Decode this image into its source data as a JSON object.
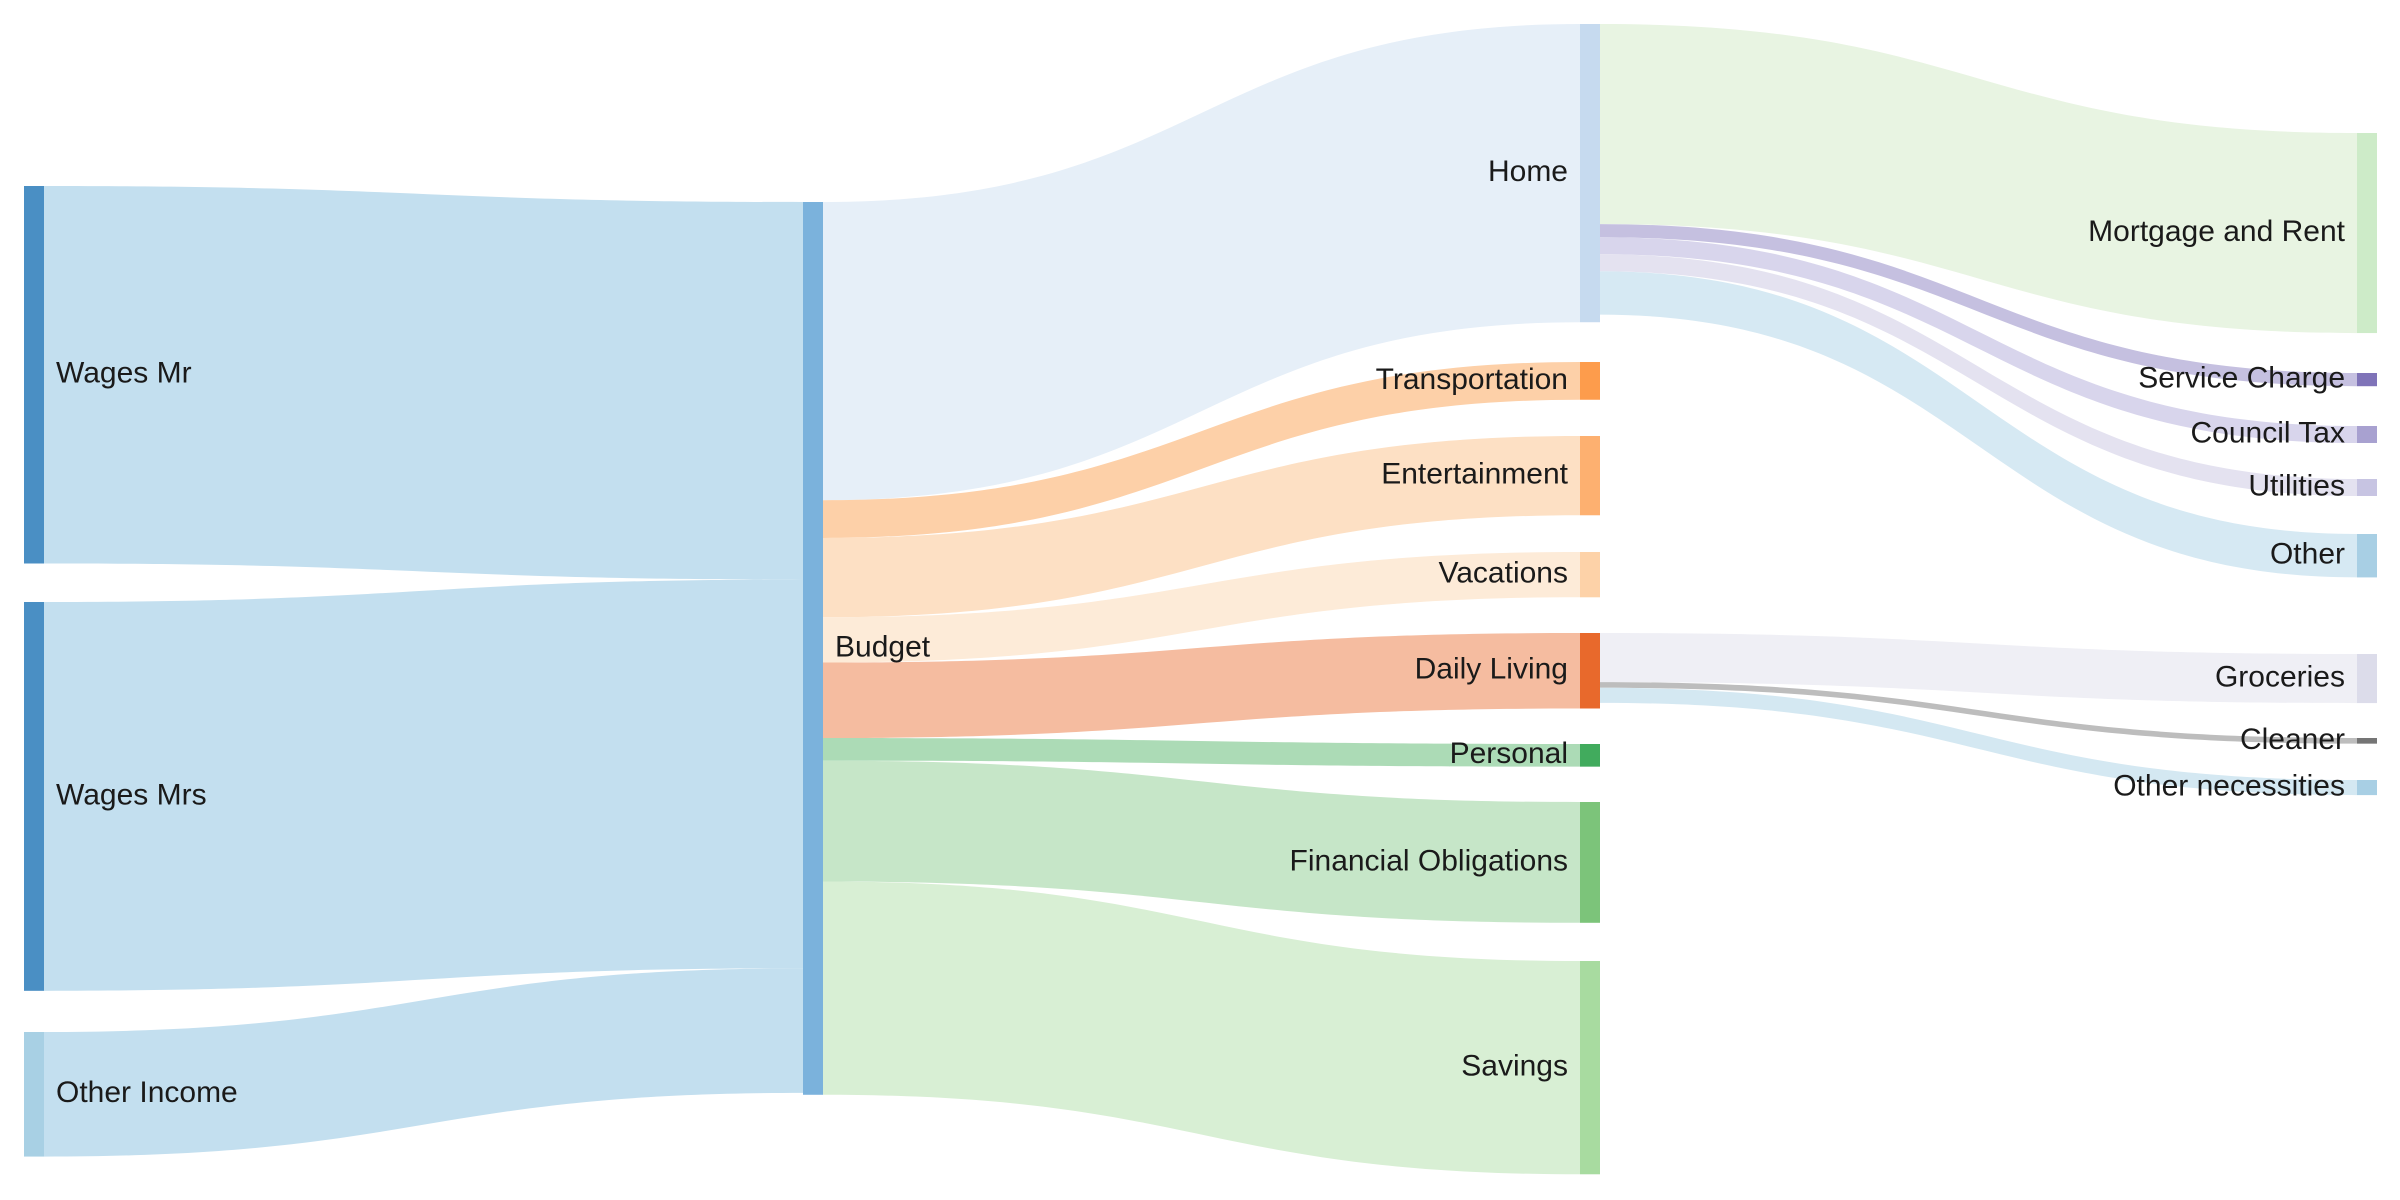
{
  "chart_data": {
    "type": "sankey",
    "title": "",
    "nodes": [
      {
        "id": "wages_mr",
        "label": "Wages Mr",
        "color": "#4a8fc4"
      },
      {
        "id": "wages_mrs",
        "label": "Wages Mrs",
        "color": "#4a8fc4"
      },
      {
        "id": "other_income",
        "label": "Other Income",
        "color": "#a8d0e4"
      },
      {
        "id": "budget",
        "label": "Budget",
        "color": "#7bb2dc"
      },
      {
        "id": "home",
        "label": "Home",
        "color": "#c6daef"
      },
      {
        "id": "transportation",
        "label": "Transportation",
        "color": "#fd9c4c"
      },
      {
        "id": "entertainment",
        "label": "Entertainment",
        "color": "#fdb070"
      },
      {
        "id": "vacations",
        "label": "Vacations",
        "color": "#fdd2a8"
      },
      {
        "id": "daily_living",
        "label": "Daily Living",
        "color": "#e8692c"
      },
      {
        "id": "personal",
        "label": "Personal",
        "color": "#41ab5d"
      },
      {
        "id": "financial_obligations",
        "label": "Financial Obligations",
        "color": "#7cc47a"
      },
      {
        "id": "savings",
        "label": "Savings",
        "color": "#a8dba0"
      },
      {
        "id": "mortgage_rent",
        "label": "Mortgage and Rent",
        "color": "#cdebc8"
      },
      {
        "id": "service_charge",
        "label": "Service Charge",
        "color": "#7f73b8"
      },
      {
        "id": "council_tax",
        "label": "Council Tax",
        "color": "#a8a1d0"
      },
      {
        "id": "utilities",
        "label": "Utilities",
        "color": "#c7c4e2"
      },
      {
        "id": "other",
        "label": "Other",
        "color": "#a8cfe4"
      },
      {
        "id": "groceries",
        "label": "Groceries",
        "color": "#dcdcea"
      },
      {
        "id": "cleaner",
        "label": "Cleaner",
        "color": "#757575"
      },
      {
        "id": "other_necessities",
        "label": "Other necessities",
        "color": "#a8cfe4"
      }
    ],
    "links": [
      {
        "source": "wages_mr",
        "target": "budget",
        "value": 1000,
        "color": "#c3dfef"
      },
      {
        "source": "wages_mrs",
        "target": "budget",
        "value": 1030,
        "color": "#c3dfef"
      },
      {
        "source": "other_income",
        "target": "budget",
        "value": 330,
        "color": "#c3dfef"
      },
      {
        "source": "budget",
        "target": "home",
        "value": 790,
        "color": "#e6eff8"
      },
      {
        "source": "budget",
        "target": "transportation",
        "value": 100,
        "color": "#fdd0a8"
      },
      {
        "source": "budget",
        "target": "entertainment",
        "value": 210,
        "color": "#fde0c4"
      },
      {
        "source": "budget",
        "target": "vacations",
        "value": 120,
        "color": "#fdebd8"
      },
      {
        "source": "budget",
        "target": "daily_living",
        "value": 200,
        "color": "#f5bca0"
      },
      {
        "source": "budget",
        "target": "personal",
        "value": 60,
        "color": "#acdbb6"
      },
      {
        "source": "budget",
        "target": "financial_obligations",
        "value": 320,
        "color": "#c6e6c8"
      },
      {
        "source": "budget",
        "target": "savings",
        "value": 565,
        "color": "#d8efd4"
      },
      {
        "source": "home",
        "target": "mortgage_rent",
        "value": 530,
        "color": "#e8f4e2"
      },
      {
        "source": "home",
        "target": "service_charge",
        "value": 35,
        "color": "#c5c0e0"
      },
      {
        "source": "home",
        "target": "council_tax",
        "value": 45,
        "color": "#d8d5ec"
      },
      {
        "source": "home",
        "target": "utilities",
        "value": 45,
        "color": "#e4e2f0"
      },
      {
        "source": "home",
        "target": "other",
        "value": 115,
        "color": "#d6e9f3"
      },
      {
        "source": "daily_living",
        "target": "groceries",
        "value": 130,
        "color": "#efeff5"
      },
      {
        "source": "daily_living",
        "target": "cleaner",
        "value": 15,
        "color": "#bdbdbd"
      },
      {
        "source": "daily_living",
        "target": "other_necessities",
        "value": 40,
        "color": "#d4e8f2"
      }
    ]
  }
}
